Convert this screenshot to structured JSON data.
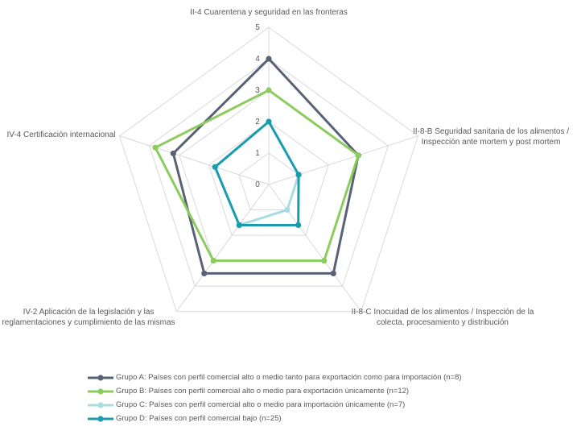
{
  "chart_data": {
    "type": "radar",
    "categories": [
      "II-4 Cuarentena y seguridad en las fronteras",
      "II-8-B Seguridad sanitaria de los alimentos / Inspección ante mortem y post mortem",
      "II-8-C Inocuidad de los alimentos / Inspección de la colecta, procesamiento y distribución",
      "IV-2 Aplicación de la legislación y las reglamentaciones y cumplimiento de las mismas",
      "IV-4 Certificación internacional"
    ],
    "category_lines": [
      [
        "II-4 Cuarentena y seguridad en las fronteras"
      ],
      [
        "II-8-B Seguridad sanitaria de los alimentos /",
        "Inspección ante mortem y post mortem"
      ],
      [
        "II-8-C Inocuidad de los alimentos / Inspección de la",
        "colecta, procesamiento y distribución"
      ],
      [
        "IV-2 Aplicación de la legislación y las",
        "reglamentaciones y cumplimiento de las mismas"
      ],
      [
        "IV-4 Certificación internacional"
      ]
    ],
    "rlim": [
      0,
      5
    ],
    "ticks": [
      "0",
      "1",
      "2",
      "3",
      "4",
      "5"
    ],
    "grid": true,
    "legend_position": "bottom",
    "series": [
      {
        "name": "Grupo A: Países con perfil comercial alto o medio tanto para exportación como para importación (n=8)",
        "color": "#596275",
        "values": [
          4,
          3,
          3.5,
          3.5,
          3.2
        ]
      },
      {
        "name": "Grupo B: Países con perfil comercial alto o medio para exportación únicamente (n=12)",
        "color": "#8ccc5e",
        "values": [
          3,
          3,
          3,
          3,
          3.8
        ]
      },
      {
        "name": "Grupo C: Países con perfil comercial alto o medio para importación únicamente (n=7)",
        "color": "#a8dce2",
        "values": [
          2,
          1,
          1,
          1.6,
          1.8
        ]
      },
      {
        "name": "Grupo D: Países con perfil comercial bajo (n=25)",
        "color": "#1b9cad",
        "values": [
          2,
          1,
          1.6,
          1.6,
          1.8
        ]
      }
    ]
  }
}
